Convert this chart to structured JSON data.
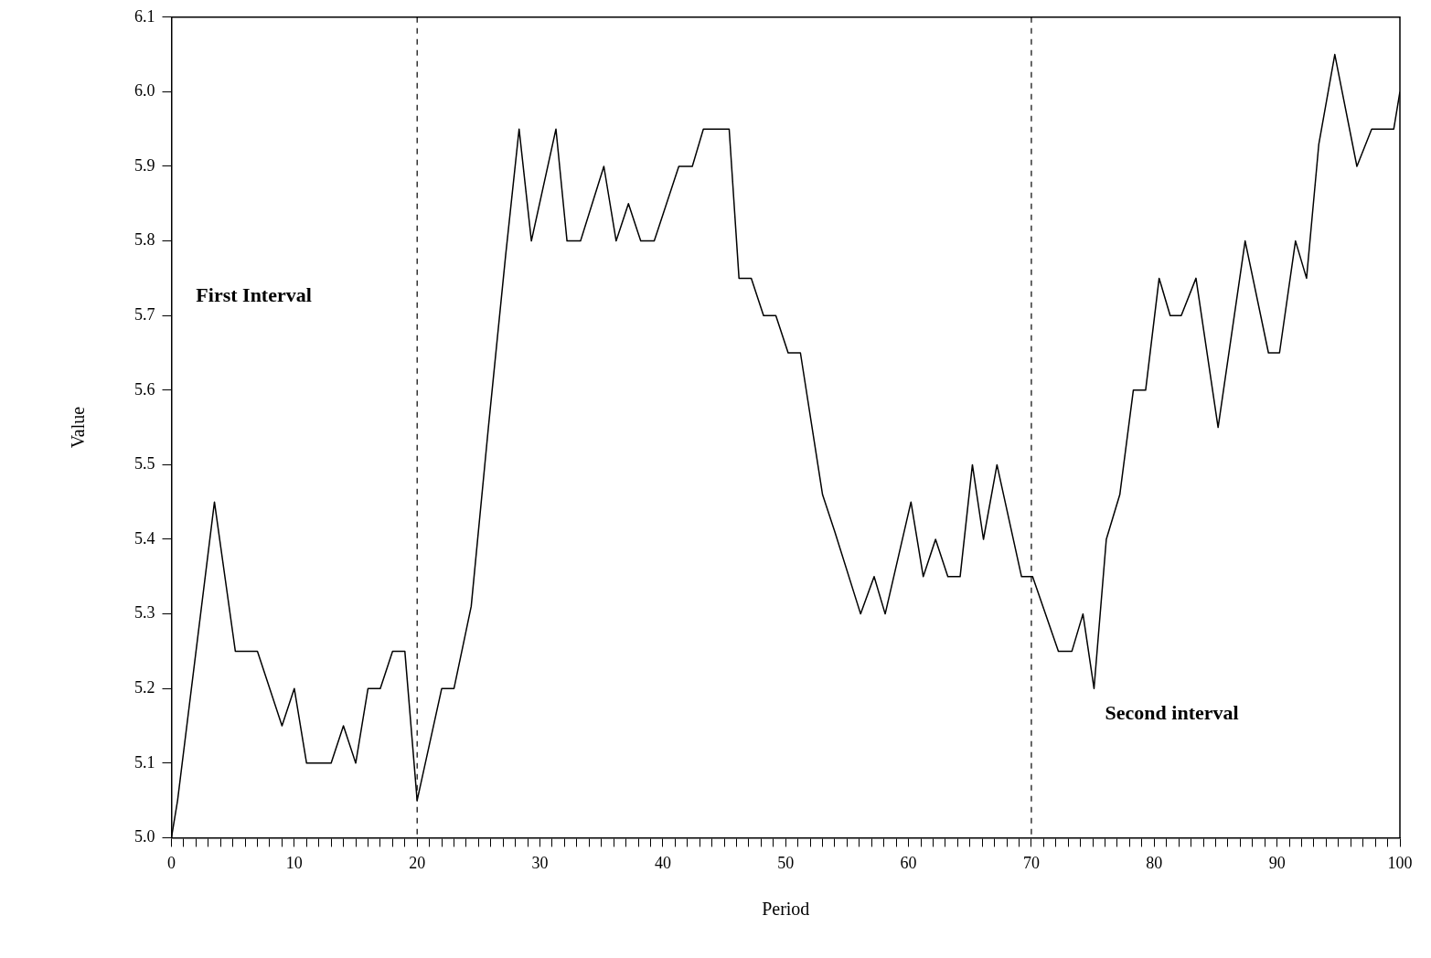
{
  "chart_data": {
    "type": "line",
    "xlabel": "Period",
    "ylabel": "Value",
    "series": [
      {
        "color": "#000000",
        "x": [
          0,
          0.5,
          3.5,
          5.2,
          7,
          9,
          10,
          11,
          13,
          14,
          15,
          16,
          17,
          18,
          19,
          20,
          22,
          23,
          24.4,
          25.8,
          27.2,
          28.3,
          29.3,
          31.3,
          32.2,
          33.3,
          35.2,
          36.2,
          37.2,
          38.2,
          39.3,
          41.3,
          42.4,
          43.3,
          45.4,
          46.2,
          47.2,
          48.2,
          49.2,
          50.2,
          51.2,
          53,
          54,
          56.1,
          57.2,
          58.1,
          60.2,
          61.2,
          62.2,
          63.2,
          64.2,
          65.2,
          66.1,
          67.2,
          69.2,
          70.1,
          72.2,
          73.3,
          74.2,
          75.1,
          76.1,
          77.2,
          78.3,
          79.3,
          80.4,
          81.3,
          82.2,
          83.4,
          85.2,
          87.4,
          89.3,
          90.2,
          91.5,
          92.4,
          93.4,
          94.7,
          96.5,
          97.7,
          99.5,
          100
        ],
        "values": [
          5.0,
          5.05,
          5.45,
          5.25,
          5.25,
          5.15,
          5.2,
          5.1,
          5.1,
          5.15,
          5.1,
          5.2,
          5.2,
          5.25,
          5.25,
          5.05,
          5.2,
          5.2,
          5.31,
          5.55,
          5.78,
          5.95,
          5.8,
          5.95,
          5.8,
          5.8,
          5.9,
          5.8,
          5.85,
          5.8,
          5.8,
          5.9,
          5.9,
          5.95,
          5.95,
          5.75,
          5.75,
          5.7,
          5.7,
          5.65,
          5.65,
          5.46,
          5.41,
          5.3,
          5.35,
          5.3,
          5.45,
          5.35,
          5.4,
          5.35,
          5.35,
          5.5,
          5.4,
          5.5,
          5.35,
          5.35,
          5.25,
          5.25,
          5.3,
          5.2,
          5.4,
          5.46,
          5.6,
          5.6,
          5.75,
          5.7,
          5.7,
          5.75,
          5.55,
          5.8,
          5.65,
          5.65,
          5.8,
          5.75,
          5.93,
          6.05,
          5.9,
          5.95,
          5.95,
          6.0
        ]
      }
    ],
    "xlim": [
      0,
      100
    ],
    "xticks": [
      0,
      {
        "value": 1,
        "label": null
      },
      {
        "value": 2,
        "label": null
      },
      {
        "value": 3,
        "label": null
      },
      {
        "value": 4,
        "label": null
      },
      {
        "value": 5,
        "label": null
      },
      {
        "value": 6,
        "label": null
      },
      {
        "value": 7,
        "label": null
      },
      {
        "value": 8,
        "label": null
      },
      {
        "value": 9,
        "label": null
      },
      10,
      {
        "value": 11,
        "label": null
      },
      {
        "value": 12,
        "label": null
      },
      {
        "value": 13,
        "label": null
      },
      {
        "value": 14,
        "label": null
      },
      {
        "value": 15,
        "label": null
      },
      {
        "value": 16,
        "label": null
      },
      {
        "value": 17,
        "label": null
      },
      {
        "value": 18,
        "label": null
      },
      {
        "value": 19,
        "label": null
      },
      20,
      {
        "value": 21,
        "label": null
      },
      {
        "value": 22,
        "label": null
      },
      {
        "value": 23,
        "label": null
      },
      {
        "value": 24,
        "label": null
      },
      {
        "value": 25,
        "label": null
      },
      {
        "value": 26,
        "label": null
      },
      {
        "value": 27,
        "label": null
      },
      {
        "value": 28,
        "label": null
      },
      {
        "value": 29,
        "label": null
      },
      30,
      {
        "value": 31,
        "label": null
      },
      {
        "value": 32,
        "label": null
      },
      {
        "value": 33,
        "label": null
      },
      {
        "value": 34,
        "label": null
      },
      {
        "value": 35,
        "label": null
      },
      {
        "value": 36,
        "label": null
      },
      {
        "value": 37,
        "label": null
      },
      {
        "value": 38,
        "label": null
      },
      {
        "value": 39,
        "label": null
      },
      40,
      {
        "value": 41,
        "label": null
      },
      {
        "value": 42,
        "label": null
      },
      {
        "value": 43,
        "label": null
      },
      {
        "value": 44,
        "label": null
      },
      {
        "value": 45,
        "label": null
      },
      {
        "value": 46,
        "label": null
      },
      {
        "value": 47,
        "label": null
      },
      {
        "value": 48,
        "label": null
      },
      {
        "value": 49,
        "label": null
      },
      50,
      {
        "value": 51,
        "label": null
      },
      {
        "value": 52,
        "label": null
      },
      {
        "value": 53,
        "label": null
      },
      {
        "value": 54,
        "label": null
      },
      {
        "value": 55,
        "label": null
      },
      {
        "value": 56,
        "label": null
      },
      {
        "value": 57,
        "label": null
      },
      {
        "value": 58,
        "label": null
      },
      {
        "value": 59,
        "label": null
      },
      60,
      {
        "value": 61,
        "label": null
      },
      {
        "value": 62,
        "label": null
      },
      {
        "value": 63,
        "label": null
      },
      {
        "value": 64,
        "label": null
      },
      {
        "value": 65,
        "label": null
      },
      {
        "value": 66,
        "label": null
      },
      {
        "value": 67,
        "label": null
      },
      {
        "value": 68,
        "label": null
      },
      {
        "value": 69,
        "label": null
      },
      70,
      {
        "value": 71,
        "label": null
      },
      {
        "value": 72,
        "label": null
      },
      {
        "value": 73,
        "label": null
      },
      {
        "value": 74,
        "label": null
      },
      {
        "value": 75,
        "label": null
      },
      {
        "value": 76,
        "label": null
      },
      {
        "value": 77,
        "label": null
      },
      {
        "value": 78,
        "label": null
      },
      {
        "value": 79,
        "label": null
      },
      80,
      {
        "value": 81,
        "label": null
      },
      {
        "value": 82,
        "label": null
      },
      {
        "value": 83,
        "label": null
      },
      {
        "value": 84,
        "label": null
      },
      {
        "value": 85,
        "label": null
      },
      {
        "value": 86,
        "label": null
      },
      {
        "value": 87,
        "label": null
      },
      {
        "value": 88,
        "label": null
      },
      {
        "value": 89,
        "label": null
      },
      90,
      {
        "value": 91,
        "label": null
      },
      {
        "value": 92,
        "label": null
      },
      {
        "value": 93,
        "label": null
      },
      {
        "value": 94,
        "label": null
      },
      {
        "value": 95,
        "label": null
      },
      {
        "value": 96,
        "label": null
      },
      {
        "value": 97,
        "label": null
      },
      {
        "value": 98,
        "label": null
      },
      {
        "value": 99,
        "label": null
      },
      100
    ],
    "ylim": [
      5.0,
      6.1
    ],
    "yticks": [
      {
        "value": 5.0,
        "label": "5.0"
      },
      {
        "value": 5.1,
        "label": "5.1"
      },
      {
        "value": 5.2,
        "label": "5.2"
      },
      {
        "value": 5.3,
        "label": "5.3"
      },
      {
        "value": 5.4,
        "label": "5.4"
      },
      {
        "value": 5.5,
        "label": "5.5"
      },
      {
        "value": 5.6,
        "label": "5.6"
      },
      {
        "value": 5.7,
        "label": "5.7"
      },
      {
        "value": 5.8,
        "label": "5.8"
      },
      {
        "value": 5.9,
        "label": "5.9"
      },
      {
        "value": 6.0,
        "label": "6.0"
      },
      {
        "value": 6.1,
        "label": "6.1"
      }
    ],
    "ref_lines": [
      {
        "axis": "x",
        "value": 20,
        "line_style": "dashed",
        "color": "#000000"
      },
      {
        "axis": "x",
        "value": 70,
        "line_style": "dashed",
        "color": "#000000"
      }
    ],
    "annotations": [
      "First Interval",
      "Second interval"
    ],
    "grid": false,
    "legend": false,
    "marker": "none",
    "line_style": "solid"
  }
}
